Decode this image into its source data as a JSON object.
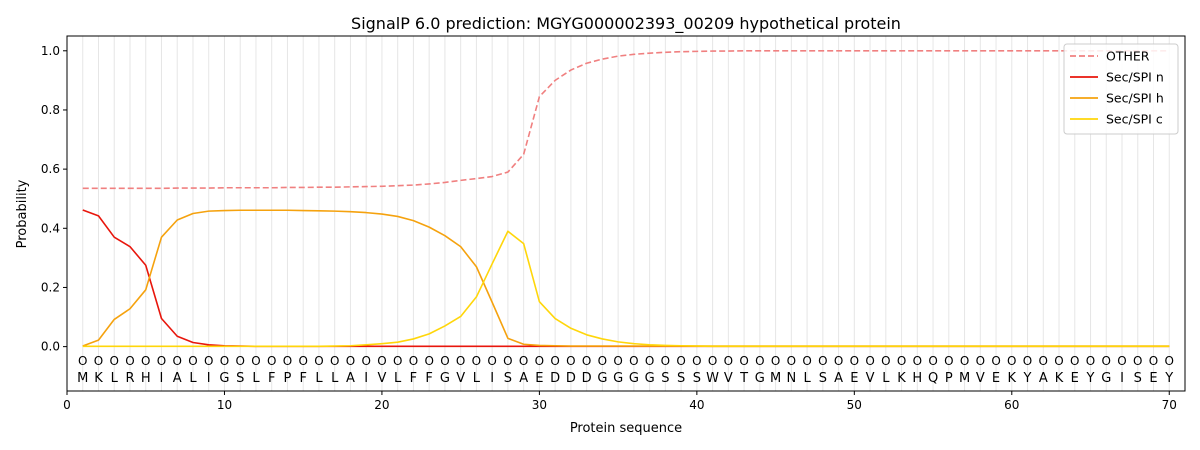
{
  "chart_data": {
    "type": "line",
    "title": "SignalP 6.0 prediction: MGYG000002393_00209 hypothetical protein",
    "xlabel": "Protein sequence",
    "ylabel": "Probability",
    "xlim": [
      0,
      71
    ],
    "ylim": [
      -0.15,
      1.05
    ],
    "x_ticks": [
      0,
      10,
      20,
      30,
      40,
      50,
      60,
      70
    ],
    "y_ticks": [
      0.0,
      0.2,
      0.4,
      0.6,
      0.8,
      1.0
    ],
    "x_tick_labels": [
      "0",
      "10",
      "20",
      "30",
      "40",
      "50",
      "60",
      "70"
    ],
    "y_tick_labels": [
      "0.0",
      "0.2",
      "0.4",
      "0.6",
      "0.8",
      "1.0"
    ],
    "grid": "vertical lines at each residue",
    "legend_position": "top-right",
    "sequence": [
      "M",
      "K",
      "L",
      "R",
      "H",
      "I",
      "A",
      "L",
      "I",
      "G",
      "S",
      "L",
      "F",
      "P",
      "F",
      "L",
      "L",
      "A",
      "I",
      "V",
      "L",
      "F",
      "F",
      "G",
      "V",
      "L",
      "I",
      "S",
      "A",
      "E",
      "D",
      "D",
      "D",
      "G",
      "G",
      "G",
      "G",
      "S",
      "S",
      "S",
      "W",
      "V",
      "T",
      "G",
      "M",
      "N",
      "L",
      "S",
      "A",
      "E",
      "V",
      "L",
      "K",
      "H",
      "Q",
      "P",
      "M",
      "V",
      "E",
      "K",
      "Y",
      "A",
      "K",
      "E",
      "Y",
      "G",
      "I",
      "S",
      "E",
      "Y"
    ],
    "region_labels": [
      "O",
      "O",
      "O",
      "O",
      "O",
      "O",
      "O",
      "O",
      "O",
      "O",
      "O",
      "O",
      "O",
      "O",
      "O",
      "O",
      "O",
      "O",
      "O",
      "O",
      "O",
      "O",
      "O",
      "O",
      "O",
      "O",
      "O",
      "O",
      "O",
      "O",
      "O",
      "O",
      "O",
      "O",
      "O",
      "O",
      "O",
      "O",
      "O",
      "O",
      "O",
      "O",
      "O",
      "O",
      "O",
      "O",
      "O",
      "O",
      "O",
      "O",
      "O",
      "O",
      "O",
      "O",
      "O",
      "O",
      "O",
      "O",
      "O",
      "O",
      "O",
      "O",
      "O",
      "O",
      "O",
      "O",
      "O",
      "O",
      "O",
      "O"
    ],
    "series": [
      {
        "name": "OTHER",
        "color": "#f08080",
        "dash": "dashed",
        "values": [
          0.535,
          0.535,
          0.535,
          0.535,
          0.535,
          0.535,
          0.536,
          0.536,
          0.536,
          0.537,
          0.537,
          0.537,
          0.537,
          0.538,
          0.538,
          0.539,
          0.539,
          0.54,
          0.541,
          0.542,
          0.544,
          0.546,
          0.55,
          0.555,
          0.562,
          0.568,
          0.575,
          0.59,
          0.65,
          0.845,
          0.9,
          0.935,
          0.958,
          0.972,
          0.982,
          0.988,
          0.992,
          0.995,
          0.997,
          0.998,
          0.999,
          0.999,
          1.0,
          1.0,
          1.0,
          1.0,
          1.0,
          1.0,
          1.0,
          1.0,
          1.0,
          1.0,
          1.0,
          1.0,
          1.0,
          1.0,
          1.0,
          1.0,
          1.0,
          1.0,
          1.0,
          1.0,
          1.0,
          1.0,
          1.0,
          1.0,
          1.0,
          1.0,
          1.0,
          1.0
        ]
      },
      {
        "name": "Sec/SPI n",
        "color": "#e8160c",
        "dash": "solid",
        "values": [
          0.462,
          0.442,
          0.37,
          0.338,
          0.275,
          0.095,
          0.035,
          0.014,
          0.006,
          0.003,
          0.002,
          0.001,
          0.001,
          0.001,
          0.001,
          0.001,
          0.001,
          0.001,
          0.001,
          0.001,
          0.001,
          0.001,
          0.001,
          0.001,
          0.001,
          0.001,
          0.001,
          0.001,
          0.001,
          0.001,
          0.001,
          0.001,
          0.001,
          0.001,
          0.001,
          0.001,
          0.001,
          0.001,
          0.001,
          0.001,
          0.001,
          0.001,
          0.001,
          0.001,
          0.001,
          0.001,
          0.001,
          0.001,
          0.001,
          0.001,
          0.001,
          0.001,
          0.001,
          0.001,
          0.001,
          0.001,
          0.001,
          0.001,
          0.001,
          0.001,
          0.001,
          0.001,
          0.001,
          0.001,
          0.001,
          0.001,
          0.001,
          0.001,
          0.001,
          0.001
        ]
      },
      {
        "name": "Sec/SPI h",
        "color": "#f5a20e",
        "dash": "solid",
        "values": [
          0.002,
          0.022,
          0.092,
          0.128,
          0.192,
          0.37,
          0.428,
          0.45,
          0.458,
          0.46,
          0.461,
          0.461,
          0.461,
          0.461,
          0.46,
          0.459,
          0.458,
          0.456,
          0.453,
          0.448,
          0.44,
          0.426,
          0.404,
          0.375,
          0.338,
          0.27,
          0.15,
          0.028,
          0.008,
          0.004,
          0.003,
          0.002,
          0.002,
          0.002,
          0.002,
          0.002,
          0.002,
          0.002,
          0.002,
          0.002,
          0.002,
          0.002,
          0.002,
          0.002,
          0.002,
          0.002,
          0.002,
          0.002,
          0.002,
          0.002,
          0.002,
          0.002,
          0.002,
          0.002,
          0.002,
          0.002,
          0.002,
          0.002,
          0.002,
          0.002,
          0.002,
          0.002,
          0.002,
          0.002,
          0.002,
          0.002,
          0.002,
          0.002,
          0.002,
          0.002
        ]
      },
      {
        "name": "Sec/SPI c",
        "color": "#ffd60a",
        "dash": "solid",
        "values": [
          0.001,
          0.001,
          0.001,
          0.001,
          0.001,
          0.001,
          0.001,
          0.001,
          0.001,
          0.001,
          0.001,
          0.001,
          0.001,
          0.001,
          0.001,
          0.001,
          0.002,
          0.003,
          0.006,
          0.01,
          0.015,
          0.026,
          0.043,
          0.07,
          0.102,
          0.168,
          0.28,
          0.39,
          0.348,
          0.152,
          0.095,
          0.062,
          0.04,
          0.026,
          0.016,
          0.01,
          0.006,
          0.004,
          0.003,
          0.002,
          0.001,
          0.001,
          0.001,
          0.001,
          0.001,
          0.001,
          0.001,
          0.001,
          0.001,
          0.001,
          0.001,
          0.001,
          0.001,
          0.001,
          0.001,
          0.001,
          0.001,
          0.001,
          0.001,
          0.001,
          0.001,
          0.001,
          0.001,
          0.001,
          0.001,
          0.001,
          0.001,
          0.001,
          0.001,
          0.001
        ]
      }
    ]
  }
}
